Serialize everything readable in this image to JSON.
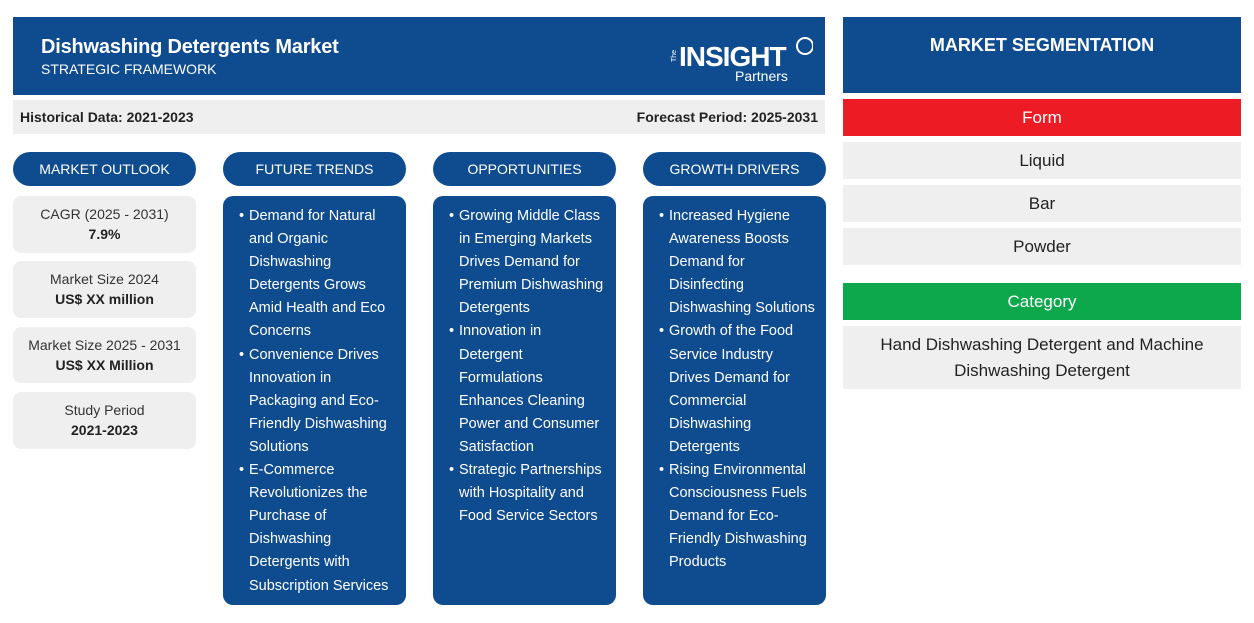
{
  "header": {
    "title": "Dishwashing Detergents Market",
    "subtitle": "STRATEGIC FRAMEWORK",
    "logo_text": "The INSIGHT Partners",
    "color": "#0f4c8f"
  },
  "periods": {
    "historical": "Historical Data: 2021-2023",
    "forecast": "Forecast Period: 2025-2031"
  },
  "market_outlook": {
    "heading": "MARKET OUTLOOK",
    "stats": [
      {
        "label": "CAGR (2025 - 2031)",
        "value": "7.9%"
      },
      {
        "label": "Market Size 2024",
        "value": "US$ XX million"
      },
      {
        "label": "Market Size 2025 - 2031",
        "value": "US$ XX Million"
      },
      {
        "label": "Study Period",
        "value": "2021-2023"
      }
    ]
  },
  "future_trends": {
    "heading": "FUTURE TRENDS",
    "items": [
      "Demand for Natural and Organic Dishwashing Detergents Grows Amid Health and Eco Concerns",
      "Convenience Drives Innovation in Packaging and Eco-Friendly Dishwashing Solutions",
      "E-Commerce Revolutionizes the Purchase of Dishwashing Detergents with Subscription Services"
    ]
  },
  "opportunities": {
    "heading": "OPPORTUNITIES",
    "items": [
      "Growing Middle Class in Emerging Markets Drives Demand for Premium Dishwashing Detergents",
      "Innovation in Detergent Formulations Enhances Cleaning Power and Consumer Satisfaction",
      "Strategic Partnerships with Hospitality and Food Service Sectors"
    ]
  },
  "growth_drivers": {
    "heading": "GROWTH DRIVERS",
    "items": [
      "Increased Hygiene Awareness Boosts Demand for Disinfecting Dishwashing Solutions",
      "Growth of the Food Service Industry Drives Demand for Commercial Dishwashing Detergents",
      "Rising Environmental Consciousness Fuels Demand for Eco-Friendly Dishwashing Products"
    ]
  },
  "segmentation": {
    "heading": "MARKET SEGMENTATION",
    "form": {
      "label": "Form",
      "color": "#ed1c24",
      "items": [
        "Liquid",
        "Bar",
        "Powder"
      ]
    },
    "category": {
      "label": "Category",
      "color": "#0ca84b",
      "items": [
        "Hand Dishwashing Detergent and Machine Dishwashing Detergent"
      ]
    }
  }
}
